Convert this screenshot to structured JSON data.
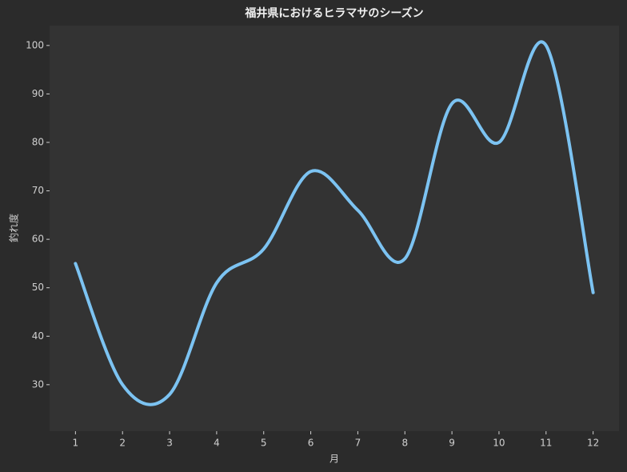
{
  "chart_data": {
    "type": "line",
    "title": "福井県におけるヒラマサのシーズン",
    "x_label": "月",
    "y_label": "釣れ度",
    "x": [
      1,
      2,
      3,
      4,
      5,
      6,
      7,
      8,
      9,
      10,
      11,
      12
    ],
    "values": [
      55,
      30,
      28,
      51,
      58,
      74,
      66,
      56,
      88,
      80,
      100,
      49
    ],
    "color": "#7cc3f2",
    "smooth": true,
    "xlim": [
      0.45,
      12.55
    ],
    "xticks": [
      1,
      2,
      3,
      4,
      5,
      6,
      7,
      8,
      9,
      10,
      11,
      12
    ],
    "ylim": [
      20.4,
      104.1
    ],
    "yticks": [
      30,
      40,
      50,
      60,
      70,
      80,
      90,
      100
    ],
    "grid": false
  }
}
